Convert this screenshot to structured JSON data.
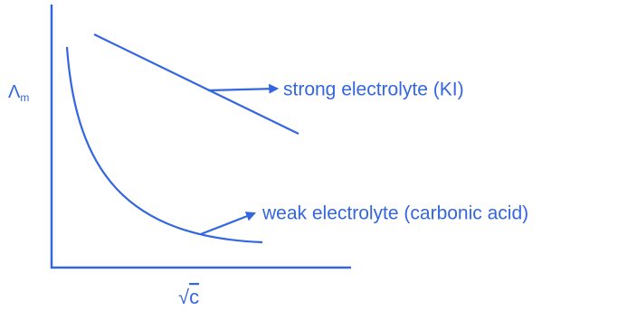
{
  "y_axis_label": {
    "symbol": "Λ",
    "subscript": "m"
  },
  "x_axis_label": {
    "radical": "√",
    "symbol": "c"
  },
  "annotations": [
    "strong electrolyte (KI)",
    "weak electrolyte (carbonic acid)"
  ]
}
